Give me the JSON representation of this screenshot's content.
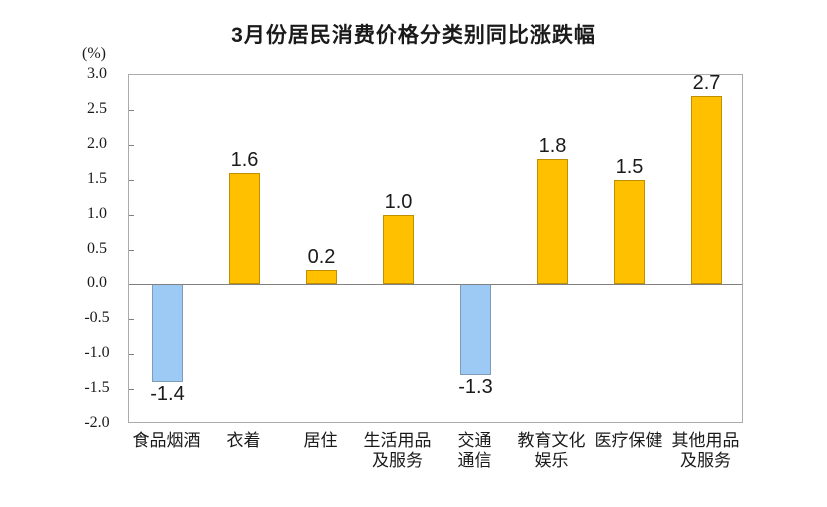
{
  "page": {
    "background": "#FFFFFF"
  },
  "chart_data": {
    "type": "bar",
    "title": "3月份居民消费价格分类别同比涨跌幅",
    "unit_label": "(%)",
    "categories": [
      "食品烟酒",
      "衣着",
      "居住",
      "生活用品及服务",
      "交通通信",
      "教育文化娱乐",
      "医疗保健",
      "其他用品及服务"
    ],
    "category_display_lines": [
      [
        "食品烟酒"
      ],
      [
        "衣着"
      ],
      [
        "居住"
      ],
      [
        "生活用品",
        "及服务"
      ],
      [
        "交通",
        "通信"
      ],
      [
        "教育文化",
        "娱乐"
      ],
      [
        "医疗保健"
      ],
      [
        "其他用品",
        "及服务"
      ]
    ],
    "values": [
      -1.4,
      1.6,
      0.2,
      1.0,
      -1.3,
      1.8,
      1.5,
      2.7
    ],
    "value_labels": [
      "-1.4",
      "1.6",
      "0.2",
      "1.0",
      "-1.3",
      "1.8",
      "1.5",
      "2.7"
    ],
    "xlabel": "",
    "ylabel": "(%)",
    "ylim": [
      -2.0,
      3.0
    ],
    "ytick_step": 0.5,
    "ytick_labels": [
      "3.0",
      "2.5",
      "2.0",
      "1.5",
      "1.0",
      "0.5",
      "0.0",
      "-0.5",
      "-1.0",
      "-1.5",
      "-2.0"
    ],
    "grid": false,
    "legend": false,
    "colors": {
      "positive_fill": "#FFC000",
      "positive_border": "#BF8F00",
      "negative_fill": "#9DC9F5",
      "negative_border": "#7F9DB9",
      "axis_line": "#808080",
      "plot_border": "#ABABAB",
      "text": "#1A1A1A"
    }
  }
}
